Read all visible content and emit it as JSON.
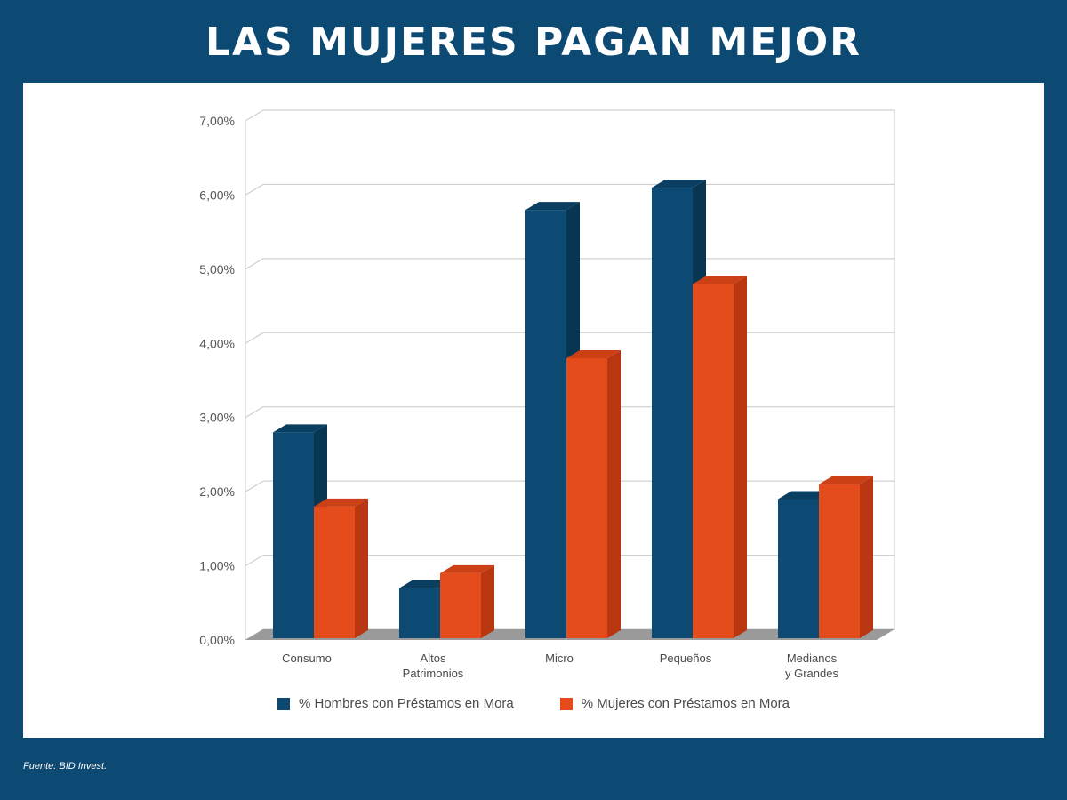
{
  "header": {
    "title": "LAS MUJERES PAGAN MEJOR"
  },
  "footer": {
    "source": "Fuente: BID Invest."
  },
  "colors": {
    "background": "#0d4a73",
    "hombres": "#0d4a73",
    "hombres_side": "#083652",
    "hombres_top": "#0b3f62",
    "mujeres": "#e54c1c",
    "mujeres_side": "#b83710",
    "mujeres_top": "#cc4015",
    "grid": "#c8c8c8",
    "floor": "#9a9a9a"
  },
  "chart_data": {
    "type": "bar",
    "title": "LAS MUJERES PAGAN MEJOR",
    "xlabel": "",
    "ylabel": "",
    "categories": [
      [
        "Consumo"
      ],
      [
        "Altos",
        "Patrimonios"
      ],
      [
        "Micro"
      ],
      [
        "Pequeños"
      ],
      [
        "Medianos",
        "y Grandes"
      ]
    ],
    "series": [
      {
        "name": "% Hombres con Préstamos en Mora",
        "values": [
          2.8,
          0.7,
          5.8,
          6.1,
          1.9
        ]
      },
      {
        "name": "% Mujeres con Préstamos en Mora",
        "values": [
          1.8,
          0.9,
          3.8,
          4.8,
          2.1
        ]
      }
    ],
    "ylim": [
      0,
      7
    ],
    "yticks": [
      "0,00%",
      "1,00%",
      "2,00%",
      "3,00%",
      "4,00%",
      "5,00%",
      "6,00%",
      "7,00%"
    ],
    "grid": true,
    "legend": "bottom",
    "style": "3d"
  }
}
